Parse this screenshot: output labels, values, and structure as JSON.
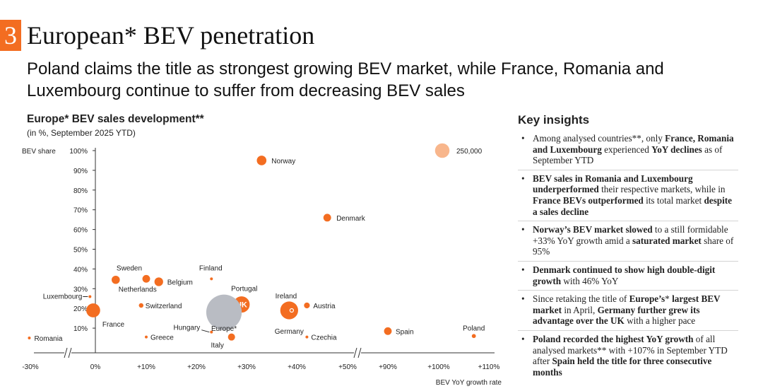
{
  "header": {
    "number": "3",
    "title": "European* BEV penetration",
    "subtitle": "Poland claims the title as strongest growing BEV market, while France, Romania and Luxembourg continue to suffer from decreasing BEV sales"
  },
  "colors": {
    "accent": "#f36d21",
    "europe": "#b9bcc3",
    "legend": "#f8b68c",
    "axis": "#333333"
  },
  "chart_data": {
    "type": "scatter",
    "title": "Europe* BEV sales development**",
    "subtitle": "(in %, September 2025 YTD)",
    "ylabel": "BEV share",
    "xlabel": "BEV YoY growth rate",
    "ylim": [
      0,
      100
    ],
    "yticks": [
      "10%",
      "20%",
      "30%",
      "40%",
      "50%",
      "60%",
      "70%",
      "80%",
      "90%",
      "100%"
    ],
    "xticks": [
      "-30%",
      "0%",
      "+10%",
      "+20%",
      "+30%",
      "+40%",
      "+50%",
      "+90%",
      "+100%",
      "+110%"
    ],
    "x_axis_breaks": [
      "-30% to 0%",
      "+50% to +90%"
    ],
    "bubble_size_legend": {
      "value": 250000,
      "label": "250,000"
    },
    "points": [
      {
        "name": "Norway",
        "label": "Norway",
        "x": 33,
        "y": 95,
        "sales": 110000
      },
      {
        "name": "Denmark",
        "label": "Denmark",
        "x": 46,
        "y": 66,
        "sales": 70000
      },
      {
        "name": "Sweden",
        "label": "Sweden",
        "x": 10,
        "y": 35,
        "sales": 70000
      },
      {
        "name": "Netherlands",
        "label": "Netherlands",
        "x": 4,
        "y": 34.5,
        "sales": 80000
      },
      {
        "name": "Belgium",
        "label": "Belgium",
        "x": 12.5,
        "y": 33.5,
        "sales": 90000
      },
      {
        "name": "Finland",
        "label": "Finland",
        "x": 23,
        "y": 35,
        "sales": 6000
      },
      {
        "name": "Portugal",
        "label": "Portugal",
        "x": 26.5,
        "y": 22,
        "sales": 35000
      },
      {
        "name": "UK",
        "label": "UK",
        "x": 29,
        "y": 22,
        "sales": 350000
      },
      {
        "name": "Europe",
        "label": "Europe*",
        "x": 25.5,
        "y": 18,
        "sales": 1500000
      },
      {
        "name": "Switzerland",
        "label": "Switzerland",
        "x": 9,
        "y": 21.5,
        "sales": 25000
      },
      {
        "name": "France",
        "label": "France",
        "x": -1,
        "y": 19,
        "sales": 230000
      },
      {
        "name": "Luxembourg",
        "label": "Luxembourg",
        "x": -2.5,
        "y": 26,
        "sales": 5000
      },
      {
        "name": "Germany",
        "label": "Germany",
        "x": 38.5,
        "y": 19,
        "sales": 380000
      },
      {
        "name": "Ireland",
        "label": "Ireland",
        "x": 39,
        "y": 19,
        "sales": 15000
      },
      {
        "name": "Austria",
        "label": "Austria",
        "x": 42,
        "y": 21.5,
        "sales": 40000
      },
      {
        "name": "Hungary",
        "label": "Hungary",
        "x": 23,
        "y": 8,
        "sales": 8000
      },
      {
        "name": "Italy",
        "label": "Italy",
        "x": 27,
        "y": 5.5,
        "sales": 60000
      },
      {
        "name": "Greece",
        "label": "Greece",
        "x": 10,
        "y": 5.5,
        "sales": 4000
      },
      {
        "name": "Czechia",
        "label": "Czechia",
        "x": 42,
        "y": 5.5,
        "sales": 8000
      },
      {
        "name": "Spain",
        "label": "Spain",
        "x": 90,
        "y": 8.5,
        "sales": 70000
      },
      {
        "name": "Poland",
        "label": "Poland",
        "x": 107,
        "y": 6,
        "sales": 20000
      },
      {
        "name": "Romania",
        "label": "Romania",
        "x": -30.5,
        "y": 5,
        "sales": 3000
      }
    ]
  },
  "insights": {
    "title": "Key insights",
    "items": [
      [
        {
          "t": "Among analysed countries**, only "
        },
        {
          "t": "France, Romania and Luxembourg",
          "b": true
        },
        {
          "t": " experienced "
        },
        {
          "t": "YoY declines",
          "b": true
        },
        {
          "t": " as of September YTD"
        }
      ],
      [
        {
          "t": "BEV sales in Romania and Luxembourg underperformed",
          "b": true
        },
        {
          "t": " their respective markets, while in "
        },
        {
          "t": "France BEVs outperformed",
          "b": true
        },
        {
          "t": " its total market "
        },
        {
          "t": "despite a sales decline",
          "b": true
        }
      ],
      [
        {
          "t": "Norway’s BEV market slowed",
          "b": true
        },
        {
          "t": " to a still formidable +33% YoY growth amid a "
        },
        {
          "t": "saturated market",
          "b": true
        },
        {
          "t": " share of 95%"
        }
      ],
      [
        {
          "t": "Denmark continued to show high double-digit growth",
          "b": true
        },
        {
          "t": " with 46% YoY"
        }
      ],
      [
        {
          "t": "Since retaking the title of "
        },
        {
          "t": "Europe’s",
          "b": true
        },
        {
          "t": "* "
        },
        {
          "t": "largest BEV market",
          "b": true
        },
        {
          "t": " in April, "
        },
        {
          "t": "Germany further grew its advantage over the UK",
          "b": true
        },
        {
          "t": " with a higher pace"
        }
      ],
      [
        {
          "t": "Poland recorded the highest YoY growth",
          "b": true
        },
        {
          "t": " of all analysed markets** with +107% in September YTD after "
        },
        {
          "t": "Spain held the title",
          "b": true
        },
        {
          "t": " for three consecutive months",
          "b": true
        }
      ]
    ]
  }
}
